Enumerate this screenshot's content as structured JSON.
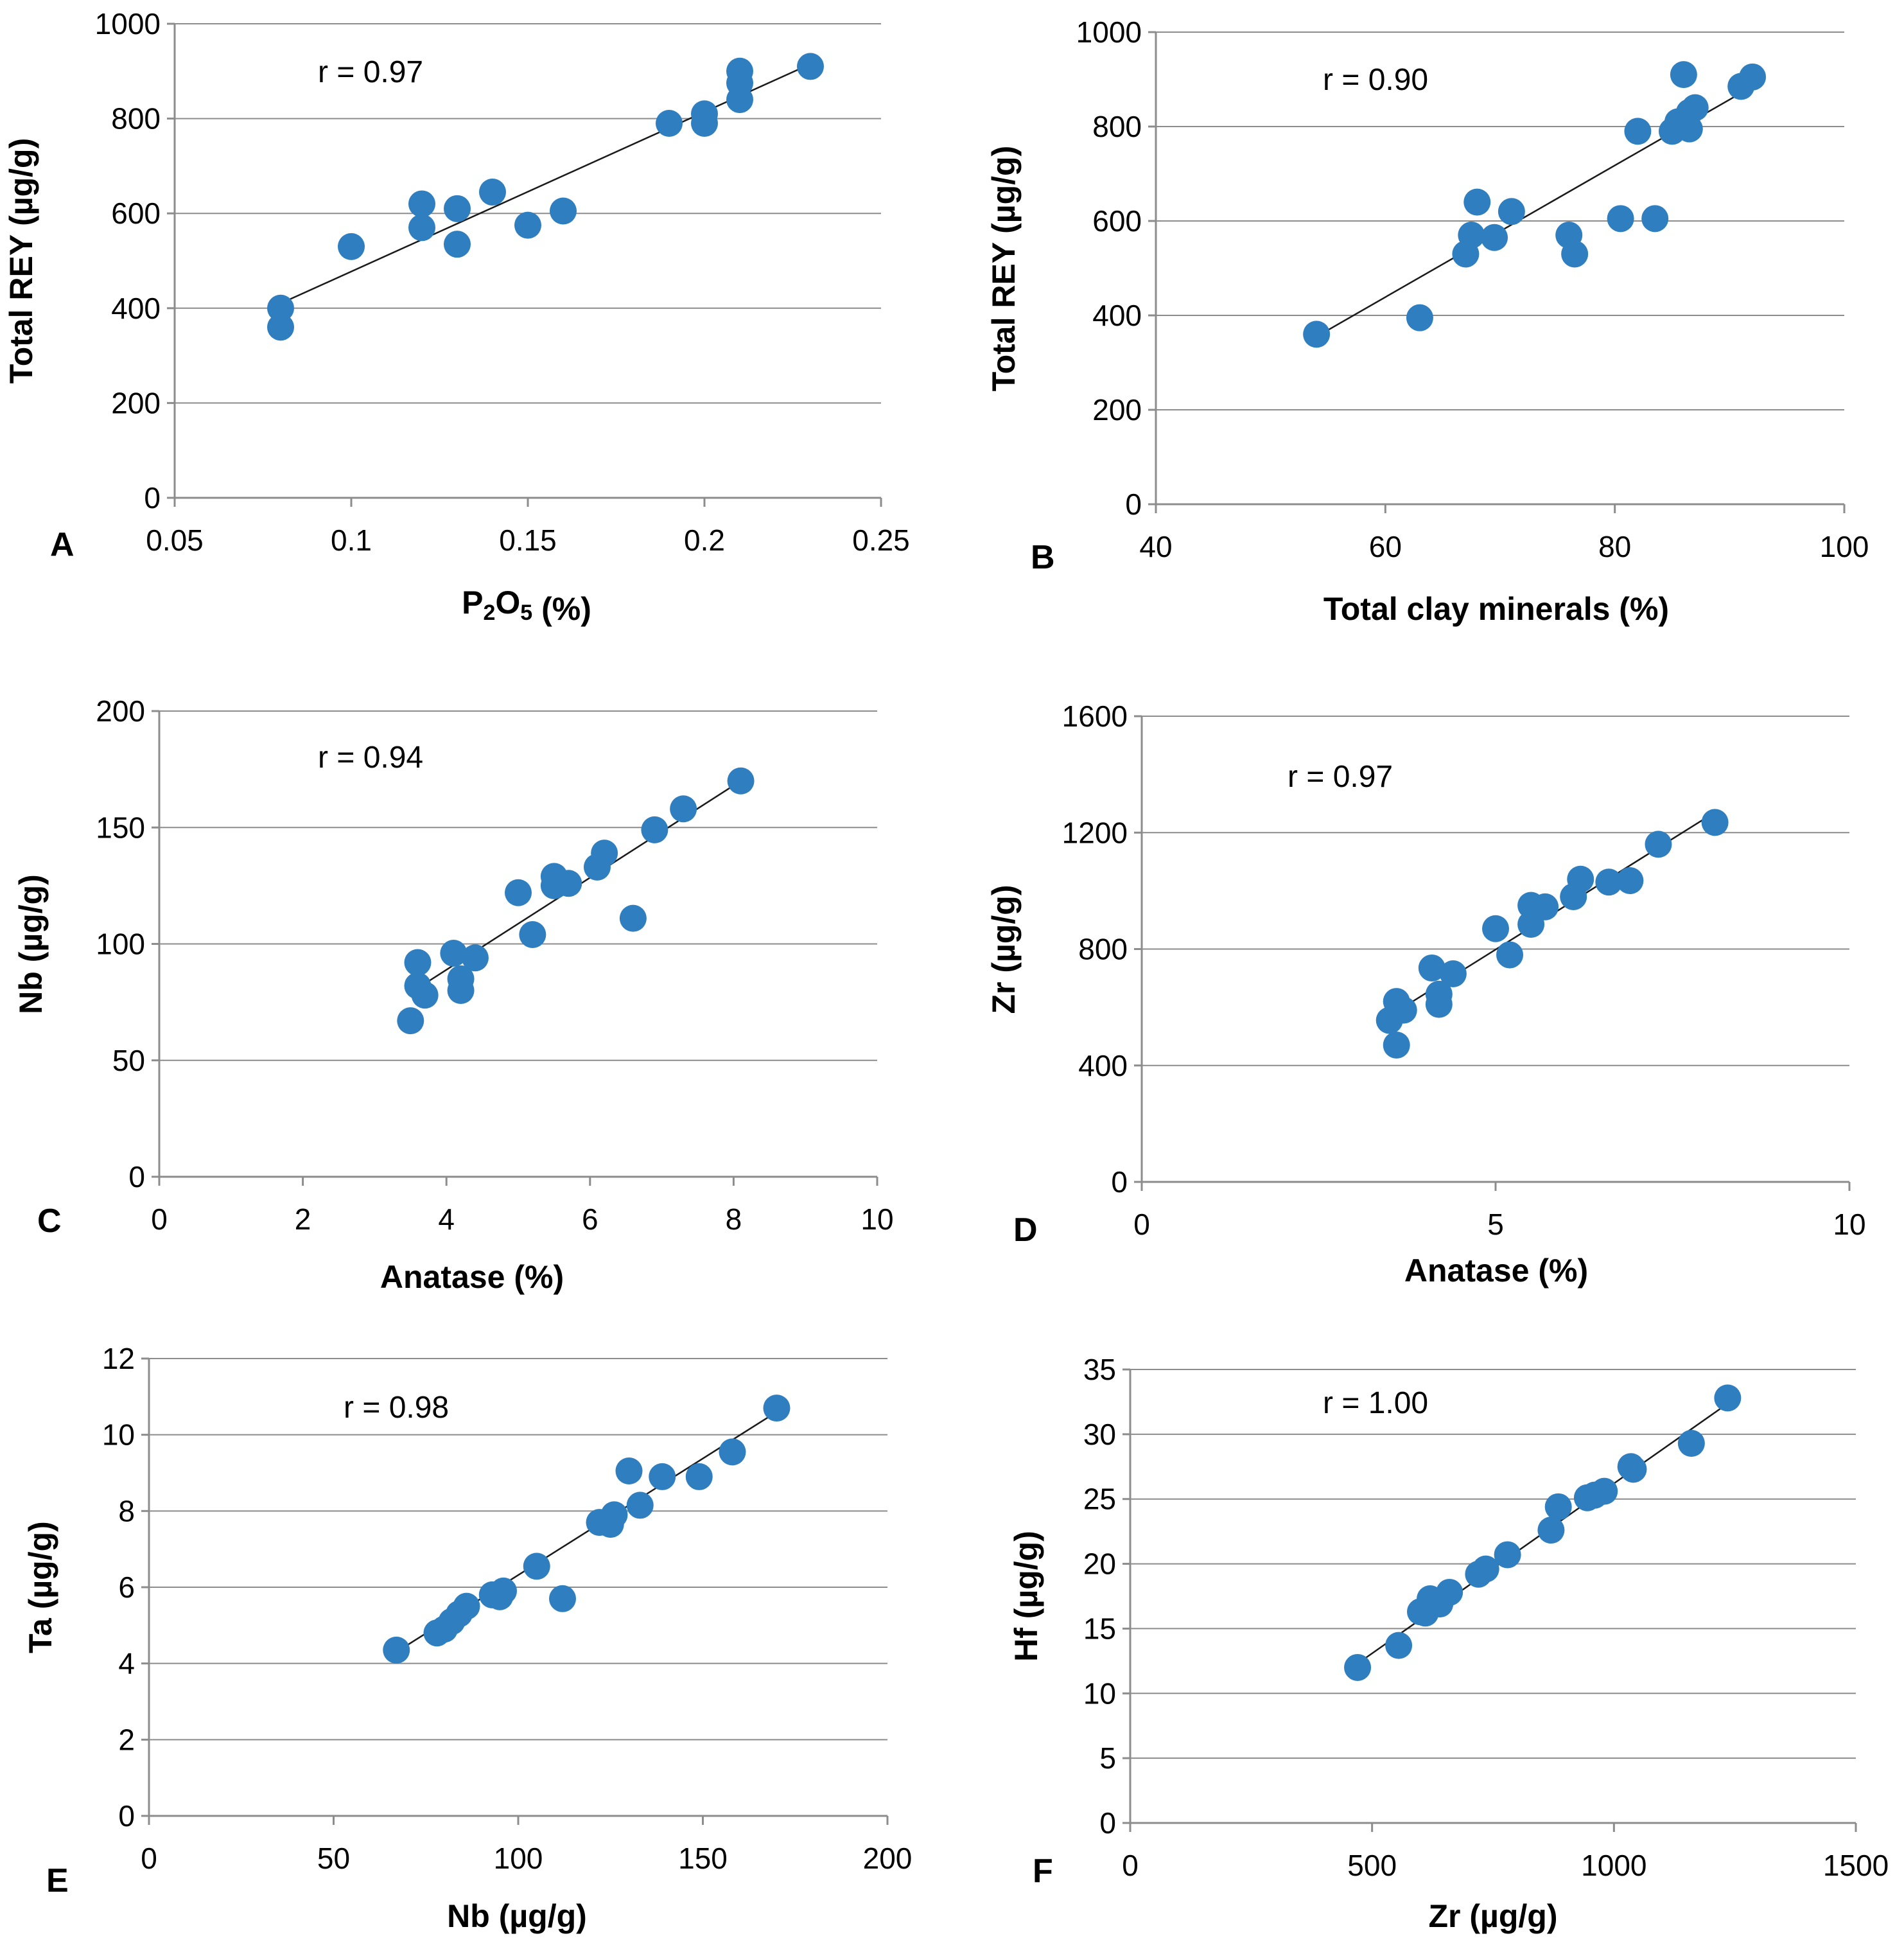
{
  "chart_data": [
    {
      "type": "scatter",
      "panel": "A",
      "annotation": "r = 0.97",
      "xlabel": "P2O5 (%)",
      "ylabel": "Total REY (µg/g)",
      "xlim": [
        0.05,
        0.25
      ],
      "ylim": [
        0,
        1000
      ],
      "xticks": [
        0.05,
        0.1,
        0.15,
        0.2,
        0.25
      ],
      "xtick_labels": [
        "0.05",
        "0.1",
        "0.15",
        "0.2",
        "0.25"
      ],
      "yticks": [
        0,
        200,
        400,
        600,
        800,
        1000
      ],
      "ytick_labels": [
        "0",
        "200",
        "400",
        "600",
        "800",
        "1000"
      ],
      "trendline": {
        "x": [
          0.08,
          0.23
        ],
        "y": [
          410,
          915
        ]
      },
      "points": [
        [
          0.08,
          400
        ],
        [
          0.08,
          360
        ],
        [
          0.1,
          530
        ],
        [
          0.12,
          620
        ],
        [
          0.12,
          570
        ],
        [
          0.13,
          610
        ],
        [
          0.13,
          535
        ],
        [
          0.14,
          645
        ],
        [
          0.15,
          575
        ],
        [
          0.16,
          605
        ],
        [
          0.19,
          790
        ],
        [
          0.2,
          810
        ],
        [
          0.2,
          790
        ],
        [
          0.21,
          900
        ],
        [
          0.21,
          875
        ],
        [
          0.21,
          840
        ],
        [
          0.23,
          910
        ]
      ]
    },
    {
      "type": "scatter",
      "panel": "B",
      "annotation": "r = 0.90",
      "xlabel": "Total clay minerals (%)",
      "ylabel": "Total REY (µg/g)",
      "xlim": [
        40,
        100
      ],
      "ylim": [
        0,
        1000
      ],
      "xticks": [
        40,
        60,
        80,
        100
      ],
      "xtick_labels": [
        "40",
        "60",
        "80",
        "100"
      ],
      "yticks": [
        0,
        200,
        400,
        600,
        800,
        1000
      ],
      "ytick_labels": [
        "0",
        "200",
        "400",
        "600",
        "800",
        "1000"
      ],
      "trendline": {
        "x": [
          54,
          92
        ],
        "y": [
          355,
          885
        ]
      },
      "points": [
        [
          54,
          360
        ],
        [
          63,
          395
        ],
        [
          67,
          530
        ],
        [
          67.5,
          570
        ],
        [
          68,
          640
        ],
        [
          69.5,
          565
        ],
        [
          71,
          620
        ],
        [
          76,
          570
        ],
        [
          76.5,
          530
        ],
        [
          80.5,
          605
        ],
        [
          83.5,
          605
        ],
        [
          82,
          790
        ],
        [
          85,
          790
        ],
        [
          85.5,
          810
        ],
        [
          86,
          910
        ],
        [
          86.5,
          795
        ],
        [
          86.5,
          830
        ],
        [
          87,
          840
        ],
        [
          91,
          885
        ],
        [
          92,
          905
        ]
      ]
    },
    {
      "type": "scatter",
      "panel": "C",
      "annotation": "r = 0.94",
      "xlabel": "Anatase (%)",
      "ylabel": "Nb (µg/g)",
      "xlim": [
        0,
        10
      ],
      "ylim": [
        0,
        200
      ],
      "xticks": [
        0,
        2,
        4,
        6,
        8,
        10
      ],
      "xtick_labels": [
        "0",
        "2",
        "4",
        "6",
        "8",
        "10"
      ],
      "yticks": [
        0,
        50,
        100,
        150,
        200
      ],
      "ytick_labels": [
        "0",
        "50",
        "100",
        "150",
        "200"
      ],
      "trendline": {
        "x": [
          3.5,
          8.1
        ],
        "y": [
          79,
          170
        ]
      },
      "points": [
        [
          3.5,
          67
        ],
        [
          3.6,
          82
        ],
        [
          3.6,
          92
        ],
        [
          3.7,
          78
        ],
        [
          4.1,
          96
        ],
        [
          4.2,
          85
        ],
        [
          4.2,
          80
        ],
        [
          4.4,
          94
        ],
        [
          5.0,
          122
        ],
        [
          5.2,
          104
        ],
        [
          5.5,
          129
        ],
        [
          5.5,
          125
        ],
        [
          5.7,
          126
        ],
        [
          6.1,
          133
        ],
        [
          6.2,
          139
        ],
        [
          6.6,
          111
        ],
        [
          6.9,
          149
        ],
        [
          7.3,
          158
        ],
        [
          8.1,
          170
        ]
      ]
    },
    {
      "type": "scatter",
      "panel": "D",
      "annotation": "r = 0.97",
      "xlabel": "Anatase (%)",
      "ylabel": "Zr (µg/g)",
      "xlim": [
        0,
        10
      ],
      "ylim": [
        0,
        1600
      ],
      "xticks": [
        0,
        5,
        10
      ],
      "xtick_labels": [
        "0",
        "5",
        "10"
      ],
      "yticks": [
        0,
        400,
        800,
        1200,
        1600
      ],
      "ytick_labels": [
        "0",
        "400",
        "800",
        "1200",
        "1600"
      ],
      "trendline": {
        "x": [
          3.5,
          8.1
        ],
        "y": [
          570,
          1270
        ]
      },
      "points": [
        [
          3.5,
          555
        ],
        [
          3.6,
          620
        ],
        [
          3.6,
          470
        ],
        [
          3.7,
          590
        ],
        [
          4.1,
          735
        ],
        [
          4.2,
          645
        ],
        [
          4.2,
          610
        ],
        [
          4.4,
          715
        ],
        [
          5.0,
          870
        ],
        [
          5.2,
          780
        ],
        [
          5.5,
          950
        ],
        [
          5.5,
          885
        ],
        [
          5.7,
          945
        ],
        [
          6.1,
          980
        ],
        [
          6.2,
          1040
        ],
        [
          6.6,
          1030
        ],
        [
          6.9,
          1035
        ],
        [
          7.3,
          1160
        ],
        [
          8.1,
          1235
        ]
      ]
    },
    {
      "type": "scatter",
      "panel": "E",
      "annotation": "r = 0.98",
      "xlabel": "Nb (µg/g)",
      "ylabel": "Ta (µg/g)",
      "xlim": [
        0,
        200
      ],
      "ylim": [
        0,
        12
      ],
      "xticks": [
        0,
        50,
        100,
        150,
        200
      ],
      "xtick_labels": [
        "0",
        "50",
        "100",
        "150",
        "200"
      ],
      "yticks": [
        0,
        2,
        4,
        6,
        8,
        10,
        12
      ],
      "ytick_labels": [
        "0",
        "2",
        "4",
        "6",
        "8",
        "10",
        "12"
      ],
      "trendline": {
        "x": [
          67,
          170
        ],
        "y": [
          4.3,
          10.6
        ]
      },
      "points": [
        [
          67,
          4.35
        ],
        [
          78,
          4.8
        ],
        [
          80,
          4.9
        ],
        [
          82,
          5.1
        ],
        [
          84,
          5.3
        ],
        [
          86,
          5.5
        ],
        [
          93,
          5.8
        ],
        [
          95,
          5.75
        ],
        [
          96,
          5.9
        ],
        [
          105,
          6.55
        ],
        [
          112,
          5.7
        ],
        [
          122,
          7.7
        ],
        [
          125,
          7.65
        ],
        [
          126,
          7.9
        ],
        [
          130,
          9.05
        ],
        [
          133,
          8.15
        ],
        [
          139,
          8.9
        ],
        [
          149,
          8.9
        ],
        [
          158,
          9.55
        ],
        [
          170,
          10.7
        ]
      ]
    },
    {
      "type": "scatter",
      "panel": "F",
      "annotation": "r = 1.00",
      "xlabel": "Zr (µg/g)",
      "ylabel": "Hf (µg/g)",
      "xlim": [
        0,
        1500
      ],
      "ylim": [
        0,
        35
      ],
      "xticks": [
        0,
        500,
        1000,
        1500
      ],
      "xtick_labels": [
        "0",
        "500",
        "1000",
        "1500"
      ],
      "yticks": [
        0,
        5,
        10,
        15,
        20,
        25,
        30,
        35
      ],
      "ytick_labels": [
        "0",
        "5",
        "10",
        "15",
        "20",
        "25",
        "30",
        "35"
      ],
      "trendline": {
        "x": [
          470,
          1240
        ],
        "y": [
          12.3,
          32.5
        ]
      },
      "points": [
        [
          470,
          12.0
        ],
        [
          555,
          13.7
        ],
        [
          600,
          16.3
        ],
        [
          610,
          16.2
        ],
        [
          620,
          17.3
        ],
        [
          640,
          16.9
        ],
        [
          660,
          17.8
        ],
        [
          720,
          19.2
        ],
        [
          735,
          19.6
        ],
        [
          780,
          20.7
        ],
        [
          870,
          22.6
        ],
        [
          885,
          24.4
        ],
        [
          945,
          25.1
        ],
        [
          960,
          25.3
        ],
        [
          980,
          25.6
        ],
        [
          1035,
          27.5
        ],
        [
          1040,
          27.3
        ],
        [
          1160,
          29.3
        ],
        [
          1235,
          32.8
        ]
      ]
    }
  ],
  "colors": {
    "marker": "#2e7ec0",
    "grid": "#8c8c8c",
    "trend": "#1a1a1a"
  }
}
